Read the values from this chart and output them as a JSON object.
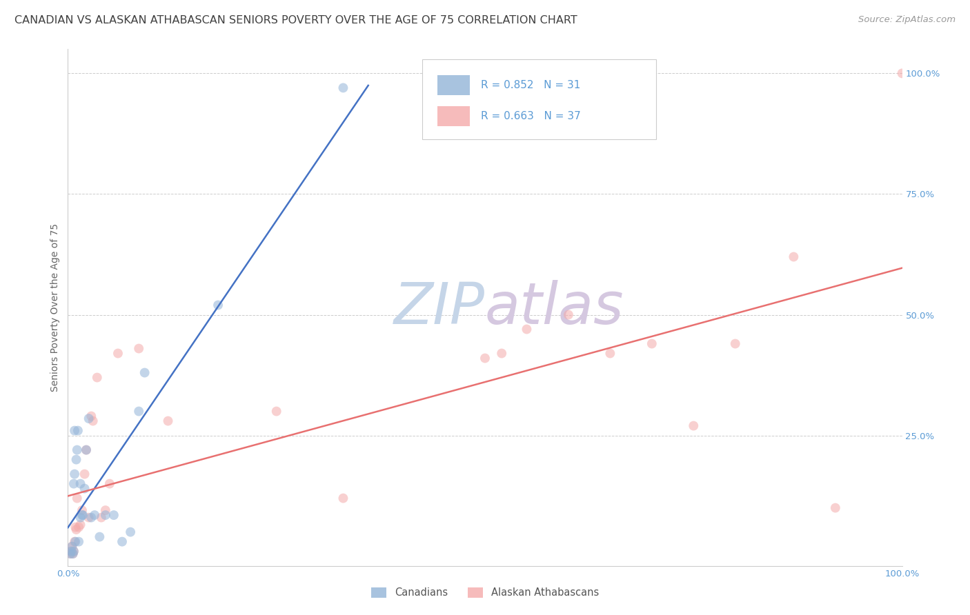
{
  "title": "CANADIAN VS ALASKAN ATHABASCAN SENIORS POVERTY OVER THE AGE OF 75 CORRELATION CHART",
  "source": "Source: ZipAtlas.com",
  "ylabel": "Seniors Poverty Over the Age of 75",
  "xlim": [
    0,
    1
  ],
  "ylim": [
    -0.02,
    1.05
  ],
  "canadians_R": "0.852",
  "canadians_N": "31",
  "alaskan_R": "0.663",
  "alaskan_N": "37",
  "canadian_color": "#92B4D8",
  "alaskan_color": "#F4AAAA",
  "canadian_line_color": "#4472C4",
  "alaskan_line_color": "#E87070",
  "watermark_zip_color": "#C5D5E8",
  "watermark_atlas_color": "#D5C8E0",
  "background_color": "#FFFFFF",
  "grid_color": "#CCCCCC",
  "title_color": "#404040",
  "tick_color": "#5B9BD5",
  "legend_border_color": "#CCCCCC",
  "legend_text_color": "#5B9BD5",
  "canadians_x": [
    0.003,
    0.004,
    0.005,
    0.006,
    0.007,
    0.007,
    0.008,
    0.008,
    0.009,
    0.01,
    0.011,
    0.012,
    0.013,
    0.015,
    0.015,
    0.017,
    0.018,
    0.02,
    0.022,
    0.025,
    0.028,
    0.032,
    0.038,
    0.045,
    0.055,
    0.065,
    0.075,
    0.085,
    0.092,
    0.18,
    0.33
  ],
  "canadians_y": [
    0.005,
    0.01,
    0.02,
    0.005,
    0.01,
    0.15,
    0.17,
    0.26,
    0.03,
    0.2,
    0.22,
    0.26,
    0.03,
    0.08,
    0.15,
    0.085,
    0.085,
    0.14,
    0.22,
    0.285,
    0.08,
    0.085,
    0.04,
    0.085,
    0.085,
    0.03,
    0.05,
    0.3,
    0.38,
    0.52,
    0.97
  ],
  "alaskan_x": [
    0.003,
    0.004,
    0.005,
    0.006,
    0.007,
    0.008,
    0.009,
    0.01,
    0.011,
    0.013,
    0.015,
    0.017,
    0.02,
    0.022,
    0.025,
    0.028,
    0.03,
    0.035,
    0.04,
    0.045,
    0.05,
    0.06,
    0.085,
    0.12,
    0.25,
    0.33,
    0.5,
    0.52,
    0.55,
    0.6,
    0.65,
    0.7,
    0.75,
    0.8,
    0.87,
    0.92,
    1.0
  ],
  "alaskan_y": [
    0.005,
    0.01,
    0.02,
    0.005,
    0.01,
    0.03,
    0.06,
    0.055,
    0.12,
    0.06,
    0.065,
    0.095,
    0.17,
    0.22,
    0.08,
    0.29,
    0.28,
    0.37,
    0.08,
    0.095,
    0.15,
    0.42,
    0.43,
    0.28,
    0.3,
    0.12,
    0.41,
    0.42,
    0.47,
    0.5,
    0.42,
    0.44,
    0.27,
    0.44,
    0.62,
    0.1,
    1.0
  ],
  "marker_size": 100,
  "marker_alpha": 0.55,
  "line_width": 1.8,
  "title_fontsize": 11.5,
  "axis_label_fontsize": 10,
  "tick_fontsize": 9.5,
  "legend_fontsize": 11,
  "source_fontsize": 9.5,
  "right_ytick_positions": [
    0.25,
    0.5,
    0.75,
    1.0
  ],
  "right_ytick_labels": [
    "25.0%",
    "50.0%",
    "75.0%",
    "100.0%"
  ]
}
